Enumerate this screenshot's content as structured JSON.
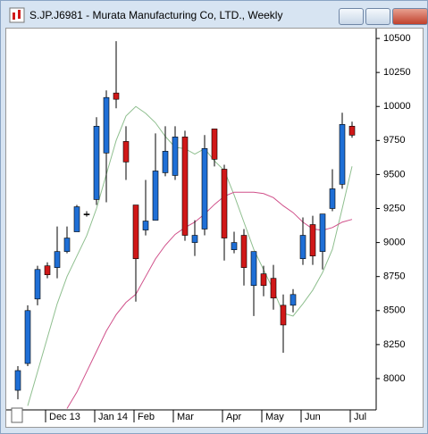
{
  "chart_data": {
    "type": "candlestick",
    "title": "S.JP.J6981 - Murata Manufacturing Co, LTD., Weekly",
    "categories": [
      null,
      null,
      null,
      "Dec 13",
      null,
      null,
      null,
      null,
      "Jan 14",
      null,
      null,
      null,
      "Feb",
      null,
      null,
      null,
      "Mar",
      null,
      null,
      null,
      null,
      "Apr",
      null,
      null,
      null,
      "May",
      null,
      null,
      null,
      "Jun",
      null,
      null,
      null,
      null,
      "Jul"
    ],
    "open": [
      7914,
      8111,
      8585,
      8829,
      8816,
      8934,
      9079,
      9210,
      9316,
      9658,
      10099,
      9743,
      9276,
      9092,
      9164,
      9513,
      9493,
      9776,
      9000,
      9099,
      9835,
      9539,
      8947,
      9053,
      8684,
      8770,
      8737,
      8539,
      8539,
      8881,
      9132,
      8934,
      9250,
      9428,
      9855
    ],
    "high": [
      8092,
      8539,
      8829,
      8855,
      9118,
      9118,
      9276,
      9230,
      9921,
      10118,
      10480,
      9855,
      9276,
      9460,
      9802,
      9855,
      9855,
      9822,
      9164,
      9790,
      9835,
      9572,
      9079,
      9099,
      8934,
      8829,
      8836,
      8618,
      8658,
      9184,
      9197,
      9210,
      9539,
      9954,
      9888
    ],
    "low": [
      7848,
      8092,
      8539,
      8737,
      8737,
      8921,
      9079,
      9190,
      9276,
      9296,
      9987,
      9460,
      8566,
      9052,
      9164,
      9487,
      9460,
      9013,
      8901,
      9053,
      9559,
      8868,
      8921,
      8684,
      8460,
      8605,
      8507,
      8190,
      8487,
      8836,
      8836,
      8802,
      9230,
      9395,
      9770
    ],
    "close": [
      8059,
      8500,
      8802,
      8763,
      8934,
      9033,
      9263,
      9210,
      9855,
      10066,
      10053,
      9592,
      8881,
      9158,
      9526,
      9671,
      9776,
      9053,
      9053,
      9691,
      9612,
      9033,
      9000,
      8816,
      8934,
      8684,
      8592,
      8394,
      8618,
      9053,
      8901,
      9210,
      9395,
      9868,
      9789
    ],
    "up_color": "#1f6fd6",
    "down_color": "#d01818",
    "series": [
      {
        "color": "#8fbf8f",
        "values": [
          null,
          7800,
          8050,
          8300,
          8550,
          8750,
          8900,
          9050,
          9250,
          9500,
          9750,
          9930,
          10000,
          9950,
          9880,
          9780,
          9700,
          9690,
          9650,
          9690,
          9600,
          9530,
          9350,
          9150,
          8950,
          8800,
          8650,
          8480,
          8460,
          8550,
          8650,
          8780,
          8950,
          9250,
          9560
        ]
      },
      {
        "color": "#d0508a",
        "values": [
          null,
          null,
          null,
          null,
          null,
          7780,
          7900,
          8050,
          8200,
          8350,
          8470,
          8560,
          8620,
          8750,
          8880,
          8980,
          9060,
          9110,
          9150,
          9210,
          9280,
          9340,
          9370,
          9370,
          9370,
          9360,
          9330,
          9270,
          9220,
          9150,
          9100,
          9090,
          9110,
          9150,
          9170
        ]
      }
    ],
    "ylim": [
      7770,
      10566
    ],
    "yticks": [
      8000,
      8250,
      8500,
      8750,
      9000,
      9250,
      9500,
      9750,
      10000,
      10250,
      10500
    ]
  }
}
